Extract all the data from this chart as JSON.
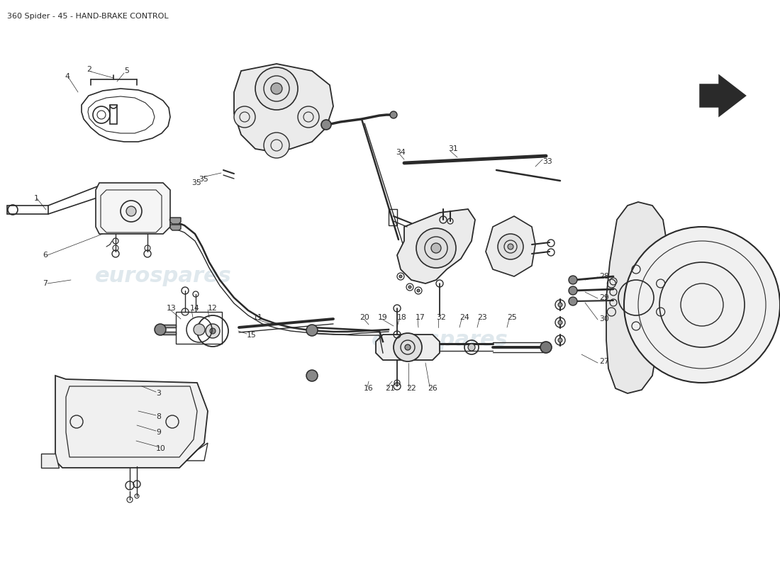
{
  "title": "360 Spider - 45 - HAND-BRAKE CONTROL",
  "background_color": "#ffffff",
  "line_color": "#2a2a2a",
  "watermark_color": "#b8ccd8",
  "watermark_alpha": 0.45,
  "label_fontsize": 7.8,
  "title_fontsize": 8.0
}
